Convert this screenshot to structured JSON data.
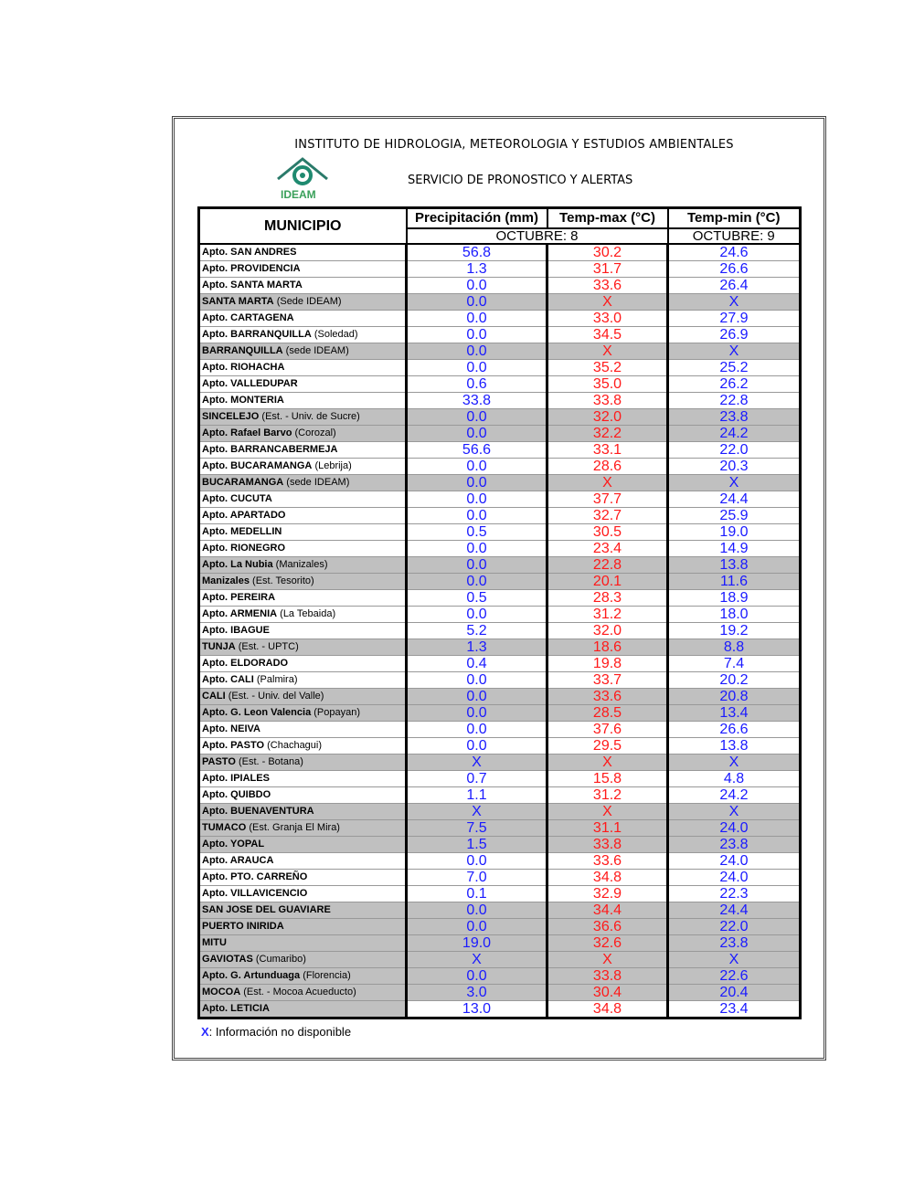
{
  "header": {
    "institute": "INSTITUTO DE HIDROLOGIA, METEOROLOGIA Y ESTUDIOS AMBIENTALES",
    "service": "SERVICIO DE PRONOSTICO Y ALERTAS",
    "logo_text": "IDEAM"
  },
  "table": {
    "columns": {
      "municipio": "MUNICIPIO",
      "precip": "Precipitación (mm)",
      "tmax": "Temp-max (°C)",
      "tmin": "Temp-min (°C)"
    },
    "date_1": "OCTUBRE: 8",
    "date_2": "OCTUBRE: 9",
    "colors": {
      "precip": "#1a1aff",
      "tmax": "#ff1a1a",
      "tmin": "#1a1aff",
      "shade": "#c0c0c0"
    },
    "rows": [
      {
        "name": "Apto. SAN ANDRES",
        "detail": "",
        "shaded": false,
        "precip": "56.8",
        "tmax": "30.2",
        "tmin": "24.6"
      },
      {
        "name": "Apto. PROVIDENCIA",
        "detail": "",
        "shaded": false,
        "precip": "1.3",
        "tmax": "31.7",
        "tmin": "26.6"
      },
      {
        "name": "Apto. SANTA MARTA",
        "detail": "",
        "shaded": false,
        "precip": "0.0",
        "tmax": "33.6",
        "tmin": "26.4"
      },
      {
        "name": "SANTA MARTA",
        "detail": "(Sede IDEAM)",
        "shaded": true,
        "precip": "0.0",
        "tmax": "X",
        "tmin": "X"
      },
      {
        "name": "Apto. CARTAGENA",
        "detail": "",
        "shaded": false,
        "precip": "0.0",
        "tmax": "33.0",
        "tmin": "27.9"
      },
      {
        "name": "Apto. BARRANQUILLA",
        "detail": "(Soledad)",
        "shaded": false,
        "precip": "0.0",
        "tmax": "34.5",
        "tmin": "26.9"
      },
      {
        "name": "BARRANQUILLA",
        "detail": "(sede IDEAM)",
        "shaded": true,
        "precip": "0.0",
        "tmax": "X",
        "tmin": "X"
      },
      {
        "name": "Apto. RIOHACHA",
        "detail": "",
        "shaded": false,
        "precip": "0.0",
        "tmax": "35.2",
        "tmin": "25.2"
      },
      {
        "name": "Apto. VALLEDUPAR",
        "detail": "",
        "shaded": false,
        "precip": "0.6",
        "tmax": "35.0",
        "tmin": "26.2"
      },
      {
        "name": "Apto. MONTERIA",
        "detail": "",
        "shaded": false,
        "precip": "33.8",
        "tmax": "33.8",
        "tmin": "22.8"
      },
      {
        "name": "SINCELEJO",
        "detail": "(Est. - Univ. de Sucre)",
        "shaded": true,
        "precip": "0.0",
        "tmax": "32.0",
        "tmin": "23.8"
      },
      {
        "name": "Apto. Rafael Barvo",
        "detail": "(Corozal)",
        "shaded": true,
        "precip": "0.0",
        "tmax": "32.2",
        "tmin": "24.2"
      },
      {
        "name": "Apto. BARRANCABERMEJA",
        "detail": "",
        "shaded": false,
        "precip": "56.6",
        "tmax": "33.1",
        "tmin": "22.0"
      },
      {
        "name": "Apto. BUCARAMANGA",
        "detail": "(Lebrija)",
        "shaded": false,
        "precip": "0.0",
        "tmax": "28.6",
        "tmin": "20.3"
      },
      {
        "name": "BUCARAMANGA",
        "detail": "(sede IDEAM)",
        "shaded": true,
        "precip": "0.0",
        "tmax": "X",
        "tmin": "X"
      },
      {
        "name": "Apto. CUCUTA",
        "detail": "",
        "shaded": false,
        "precip": "0.0",
        "tmax": "37.7",
        "tmin": "24.4"
      },
      {
        "name": "Apto. APARTADO",
        "detail": "",
        "shaded": false,
        "precip": "0.0",
        "tmax": "32.7",
        "tmin": "25.9"
      },
      {
        "name": "Apto. MEDELLIN",
        "detail": "",
        "shaded": false,
        "precip": "0.5",
        "tmax": "30.5",
        "tmin": "19.0"
      },
      {
        "name": "Apto. RIONEGRO",
        "detail": "",
        "shaded": false,
        "precip": "0.0",
        "tmax": "23.4",
        "tmin": "14.9"
      },
      {
        "name": "Apto. La Nubia",
        "detail": "(Manizales)",
        "shaded": true,
        "precip": "0.0",
        "tmax": "22.8",
        "tmin": "13.8"
      },
      {
        "name": "Manizales",
        "detail": "(Est. Tesorito)",
        "shaded": true,
        "precip": "0.0",
        "tmax": "20.1",
        "tmin": "11.6"
      },
      {
        "name": "Apto. PEREIRA",
        "detail": "",
        "shaded": false,
        "precip": "0.5",
        "tmax": "28.3",
        "tmin": "18.9"
      },
      {
        "name": "Apto. ARMENIA",
        "detail": "(La Tebaida)",
        "shaded": false,
        "precip": "0.0",
        "tmax": "31.2",
        "tmin": "18.0"
      },
      {
        "name": "Apto. IBAGUE",
        "detail": "",
        "shaded": false,
        "precip": "5.2",
        "tmax": "32.0",
        "tmin": "19.2"
      },
      {
        "name": "TUNJA",
        "detail": "(Est. - UPTC)",
        "shaded": true,
        "precip": "1.3",
        "tmax": "18.6",
        "tmin": "8.8"
      },
      {
        "name": "Apto. ELDORADO",
        "detail": "",
        "shaded": false,
        "precip": "0.4",
        "tmax": "19.8",
        "tmin": "7.4"
      },
      {
        "name": "Apto. CALI",
        "detail": "(Palmira)",
        "shaded": false,
        "precip": "0.0",
        "tmax": "33.7",
        "tmin": "20.2"
      },
      {
        "name": "CALI",
        "detail": "(Est. - Univ. del Valle)",
        "shaded": true,
        "precip": "0.0",
        "tmax": "33.6",
        "tmin": "20.8"
      },
      {
        "name": "Apto. G. Leon Valencia",
        "detail": "(Popayan)",
        "shaded": true,
        "precip": "0.0",
        "tmax": "28.5",
        "tmin": "13.4"
      },
      {
        "name": "Apto. NEIVA",
        "detail": "",
        "shaded": false,
        "precip": "0.0",
        "tmax": "37.6",
        "tmin": "26.6"
      },
      {
        "name": "Apto. PASTO",
        "detail": "(Chachagui)",
        "shaded": false,
        "precip": "0.0",
        "tmax": "29.5",
        "tmin": "13.8"
      },
      {
        "name": "PASTO",
        "detail": "(Est. - Botana)",
        "shaded": true,
        "precip": "X",
        "tmax": "X",
        "tmin": "X"
      },
      {
        "name": "Apto. IPIALES",
        "detail": "",
        "shaded": false,
        "precip": "0.7",
        "tmax": "15.8",
        "tmin": "4.8"
      },
      {
        "name": "Apto. QUIBDO",
        "detail": "",
        "shaded": false,
        "precip": "1.1",
        "tmax": "31.2",
        "tmin": "24.2"
      },
      {
        "name": "Apto. BUENAVENTURA",
        "detail": "",
        "shaded": true,
        "precip": "X",
        "tmax": "X",
        "tmin": "X"
      },
      {
        "name": "TUMACO",
        "detail": "(Est. Granja El Mira)",
        "shaded": true,
        "precip": "7.5",
        "tmax": "31.1",
        "tmin": "24.0"
      },
      {
        "name": "Apto. YOPAL",
        "detail": "",
        "shaded": true,
        "precip": "1.5",
        "tmax": "33.8",
        "tmin": "23.8"
      },
      {
        "name": "Apto. ARAUCA",
        "detail": "",
        "shaded": false,
        "precip": "0.0",
        "tmax": "33.6",
        "tmin": "24.0"
      },
      {
        "name": "Apto. PTO.  CARREÑO",
        "detail": "",
        "shaded": false,
        "precip": "7.0",
        "tmax": "34.8",
        "tmin": "24.0"
      },
      {
        "name": "Apto. VILLAVICENCIO",
        "detail": "",
        "shaded": false,
        "precip": "0.1",
        "tmax": "32.9",
        "tmin": "22.3"
      },
      {
        "name": "SAN JOSE DEL GUAVIARE",
        "detail": "",
        "shaded": true,
        "precip": "0.0",
        "tmax": "34.4",
        "tmin": "24.4"
      },
      {
        "name": "PUERTO INIRIDA",
        "detail": "",
        "shaded": true,
        "precip": "0.0",
        "tmax": "36.6",
        "tmin": "22.0"
      },
      {
        "name": "MITU",
        "detail": "",
        "shaded": true,
        "precip": "19.0",
        "tmax": "32.6",
        "tmin": "23.8"
      },
      {
        "name": "GAVIOTAS",
        "detail": "(Cumaribo)",
        "shaded": true,
        "precip": "X",
        "tmax": "X",
        "tmin": "X"
      },
      {
        "name": "Apto. G. Artunduaga",
        "detail": "(Florencia)",
        "shaded": true,
        "precip": "0.0",
        "tmax": "33.8",
        "tmin": "22.6"
      },
      {
        "name": "MOCOA",
        "detail": "(Est. - Mocoa Acueducto)",
        "shaded": true,
        "precip": "3.0",
        "tmax": "30.4",
        "tmin": "20.4"
      },
      {
        "name": "Apto. LETICIA",
        "detail": "",
        "shaded": "municipio",
        "precip": "13.0",
        "tmax": "34.8",
        "tmin": "23.4"
      }
    ]
  },
  "footer": {
    "symbol": "X",
    "note": ": Información no disponible"
  }
}
